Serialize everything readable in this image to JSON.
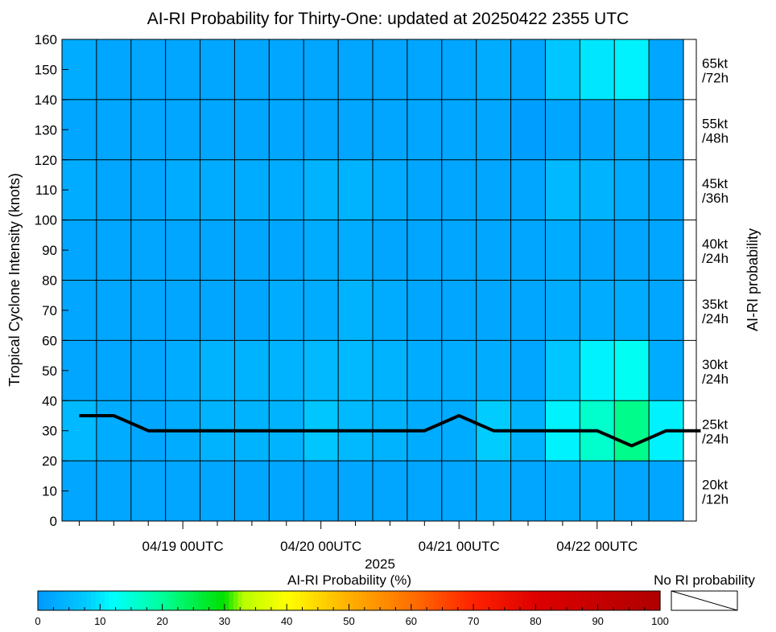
{
  "chart_data": {
    "type": "heatmap",
    "title": "AI-RI Probability for Thirty-One: updated at 20250422 2355 UTC",
    "xlabel": "2025",
    "ylabel": "Tropical Cyclone Intensity (knots)",
    "right_label": "AI-RI probability",
    "ylim": [
      0,
      160
    ],
    "y_ticks": [
      0,
      10,
      20,
      30,
      40,
      50,
      60,
      70,
      80,
      90,
      100,
      110,
      120,
      130,
      140,
      150,
      160
    ],
    "x_tick_labels": [
      {
        "label": "04/19 00UTC",
        "col": 3
      },
      {
        "label": "04/20 00UTC",
        "col": 7
      },
      {
        "label": "04/21 00UTC",
        "col": 11
      },
      {
        "label": "04/22 00UTC",
        "col": 15
      }
    ],
    "threshold_labels": [
      {
        "line1": "65kt",
        "line2": "/72h"
      },
      {
        "line1": "55kt",
        "line2": "/48h"
      },
      {
        "line1": "45kt",
        "line2": "/36h"
      },
      {
        "line1": "40kt",
        "line2": "/24h"
      },
      {
        "line1": "35kt",
        "line2": "/24h"
      },
      {
        "line1": "30kt",
        "line2": "/24h"
      },
      {
        "line1": "25kt",
        "line2": "/24h"
      },
      {
        "line1": "20kt",
        "line2": "/12h"
      }
    ],
    "band_edges": [
      160,
      140,
      120,
      100,
      80,
      60,
      40,
      20,
      0
    ],
    "n_columns": 18,
    "probability_grid": [
      [
        3,
        2,
        2,
        2,
        2,
        2,
        2,
        2,
        2,
        2,
        2,
        2,
        3,
        2,
        7,
        10,
        11,
        2
      ],
      [
        2,
        2,
        2,
        2,
        2,
        2,
        2,
        2,
        2,
        2,
        2,
        2,
        2,
        1,
        2,
        2,
        3,
        2
      ],
      [
        3,
        2,
        2,
        3,
        3,
        3,
        3,
        4,
        4,
        3,
        2,
        2,
        2,
        2,
        5,
        4,
        3,
        2
      ],
      [
        2,
        2,
        2,
        2,
        2,
        2,
        2,
        3,
        3,
        2,
        2,
        2,
        2,
        2,
        3,
        2,
        2,
        2
      ],
      [
        2,
        2,
        2,
        2,
        2,
        2,
        3,
        3,
        4,
        3,
        2,
        2,
        2,
        2,
        3,
        3,
        3,
        2
      ],
      [
        2,
        2,
        2,
        3,
        4,
        4,
        4,
        5,
        5,
        4,
        3,
        3,
        3,
        2,
        7,
        11,
        13,
        3
      ],
      [
        5,
        3,
        2,
        3,
        4,
        4,
        4,
        7,
        5,
        4,
        3,
        3,
        8,
        4,
        11,
        16,
        21,
        11
      ],
      [
        2,
        2,
        2,
        2,
        2,
        2,
        2,
        2,
        2,
        2,
        2,
        2,
        3,
        2,
        3,
        3,
        2,
        2
      ]
    ],
    "intensity_track_knots": [
      35,
      35,
      30,
      30,
      30,
      30,
      30,
      30,
      30,
      30,
      30,
      35,
      30,
      30,
      30,
      30,
      25,
      30,
      30
    ],
    "colorbar": {
      "label": "AI-RI Probability (%)",
      "ticks": [
        0,
        10,
        20,
        30,
        40,
        50,
        60,
        70,
        80,
        90,
        100
      ],
      "range": [
        0,
        100
      ]
    },
    "no_ri_label": "No RI probability"
  }
}
